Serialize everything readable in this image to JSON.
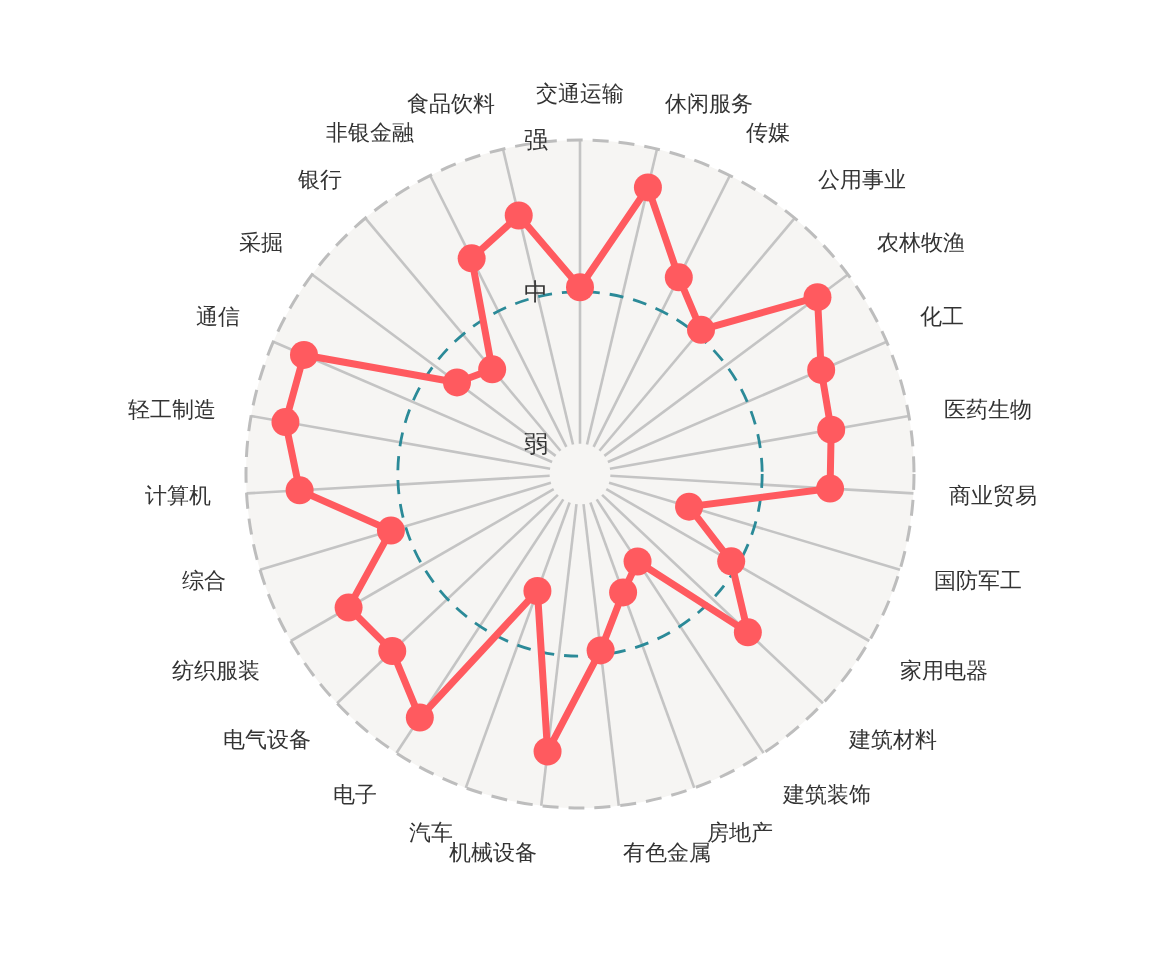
{
  "chart_data": {
    "type": "radar",
    "categories": [
      "交通运输",
      "休闲服务",
      "传媒",
      "公用事业",
      "农林牧渔",
      "化工",
      "医药生物",
      "商业贸易",
      "国防军工",
      "家用电器",
      "建筑材料",
      "建筑装饰",
      "房地产",
      "有色金属",
      "机械设备",
      "汽车",
      "电子",
      "电气设备",
      "纺织服装",
      "综合",
      "计算机",
      "轻工制造",
      "通信",
      "采掘",
      "银行",
      "非银金融",
      "食品饮料"
    ],
    "series": [
      {
        "color": "#ff5a5f",
        "values": [
          1.03,
          1.74,
          1.25,
          1.04,
          1.75,
          1.53,
          1.48,
          1.45,
          0.55,
          0.95,
          1.32,
          0.49,
          0.63,
          0.97,
          1.64,
          0.62,
          1.72,
          1.5,
          1.56,
          1.1,
          1.65,
          1.77,
          1.78,
          0.81,
          0.7,
          1.39,
          1.55
        ]
      }
    ],
    "ylim": [
      -0.2,
      2
    ],
    "yticks": [
      {
        "value": 0,
        "label": "弱"
      },
      {
        "value": 1,
        "label": "中"
      },
      {
        "value": 2,
        "label": "强"
      }
    ],
    "grid": true,
    "marker": "circle",
    "line_style": "solid"
  }
}
